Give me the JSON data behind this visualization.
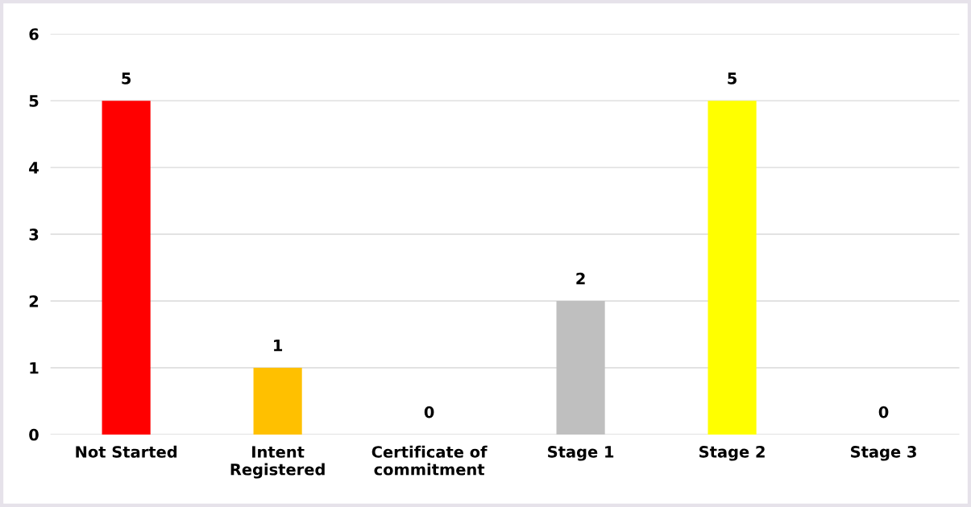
{
  "chart_data": {
    "type": "bar",
    "categories": [
      "Not Started",
      "Intent\nRegistered",
      "Certificate of\ncommitment",
      "Stage 1",
      "Stage 2",
      "Stage 3"
    ],
    "values": [
      5,
      1,
      0,
      2,
      5,
      0
    ],
    "colors": [
      "#ff0000",
      "#ffc000",
      "#a5a5a5",
      "#bfbfbf",
      "#ffff00",
      "#70ad47"
    ],
    "ylim": [
      0,
      6
    ],
    "yticks": [
      0,
      1,
      2,
      3,
      4,
      5,
      6
    ],
    "grid": "y",
    "data_labels": true
  }
}
